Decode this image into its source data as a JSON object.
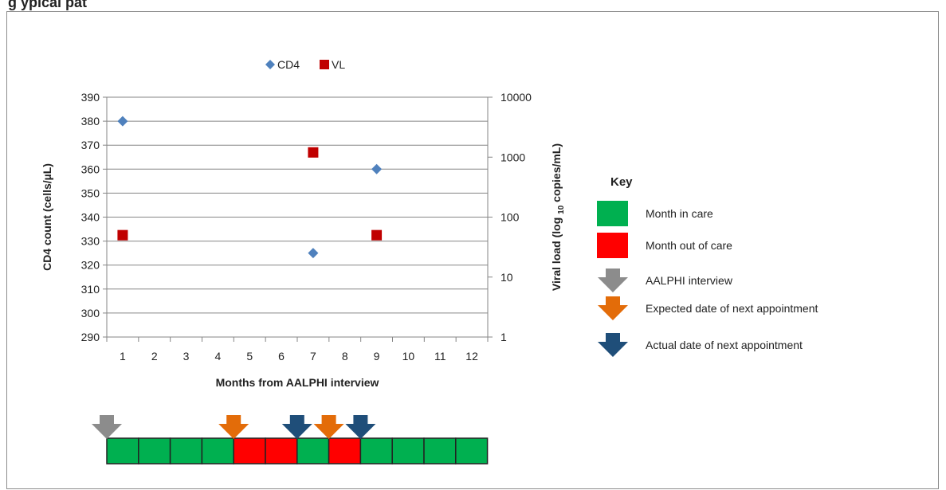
{
  "figure": {
    "title_visible": "g                                                                    ypical pat"
  },
  "chart_data": {
    "type": "scatter",
    "xlabel": "Months from AALPHI interview",
    "ylabel_left": "CD4 count (cells/µL)",
    "ylabel_right_parts": [
      "Viral load (log ",
      "10",
      " copies/mL)"
    ],
    "categories": [
      "1",
      "2",
      "3",
      "4",
      "5",
      "6",
      "7",
      "8",
      "9",
      "10",
      "11",
      "12"
    ],
    "ylim_left": [
      290,
      390
    ],
    "yticks_left": [
      290,
      300,
      310,
      320,
      330,
      340,
      350,
      360,
      370,
      380,
      390
    ],
    "ylim_right": [
      1,
      10000
    ],
    "yticks_right": [
      1,
      10,
      100,
      1000,
      10000
    ],
    "right_scale": "log",
    "grid": true,
    "legend_position": "top-center",
    "series": [
      {
        "name": "CD4",
        "axis": "left",
        "marker": "diamond",
        "color": "#4f81bd",
        "points": [
          {
            "x": "1",
            "y": 380
          },
          {
            "x": "7",
            "y": 325
          },
          {
            "x": "9",
            "y": 360
          }
        ]
      },
      {
        "name": "VL",
        "axis": "right",
        "marker": "square",
        "color": "#c00000",
        "points": [
          {
            "x": "1",
            "y": 50
          },
          {
            "x": "7",
            "y": 1200
          },
          {
            "x": "9",
            "y": 50
          }
        ]
      }
    ]
  },
  "timeline": {
    "months": [
      "in",
      "in",
      "in",
      "in",
      "out",
      "out",
      "in",
      "out",
      "in",
      "in",
      "in",
      "in"
    ],
    "arrows": [
      {
        "type": "interview",
        "at_boundary": 0
      },
      {
        "type": "expected",
        "at_boundary": 4
      },
      {
        "type": "actual",
        "at_boundary": 6
      },
      {
        "type": "expected",
        "at_boundary": 7
      },
      {
        "type": "actual",
        "at_boundary": 8
      }
    ]
  },
  "key": {
    "title": "Key",
    "items": [
      {
        "type": "in",
        "label": "Month in care"
      },
      {
        "type": "out",
        "label": "Month out of care"
      },
      {
        "type": "interview",
        "label": "AALPHI interview"
      },
      {
        "type": "expected",
        "label": "Expected date of next appointment"
      },
      {
        "type": "actual",
        "label": "Actual date of next appointment"
      }
    ]
  },
  "colors": {
    "in_care": "#00b050",
    "out_of_care": "#ff0000",
    "interview_arrow": "#8c8c8c",
    "expected_arrow": "#e36c09",
    "actual_arrow": "#1f4e79",
    "grid": "#868686",
    "axis": "#868686"
  }
}
